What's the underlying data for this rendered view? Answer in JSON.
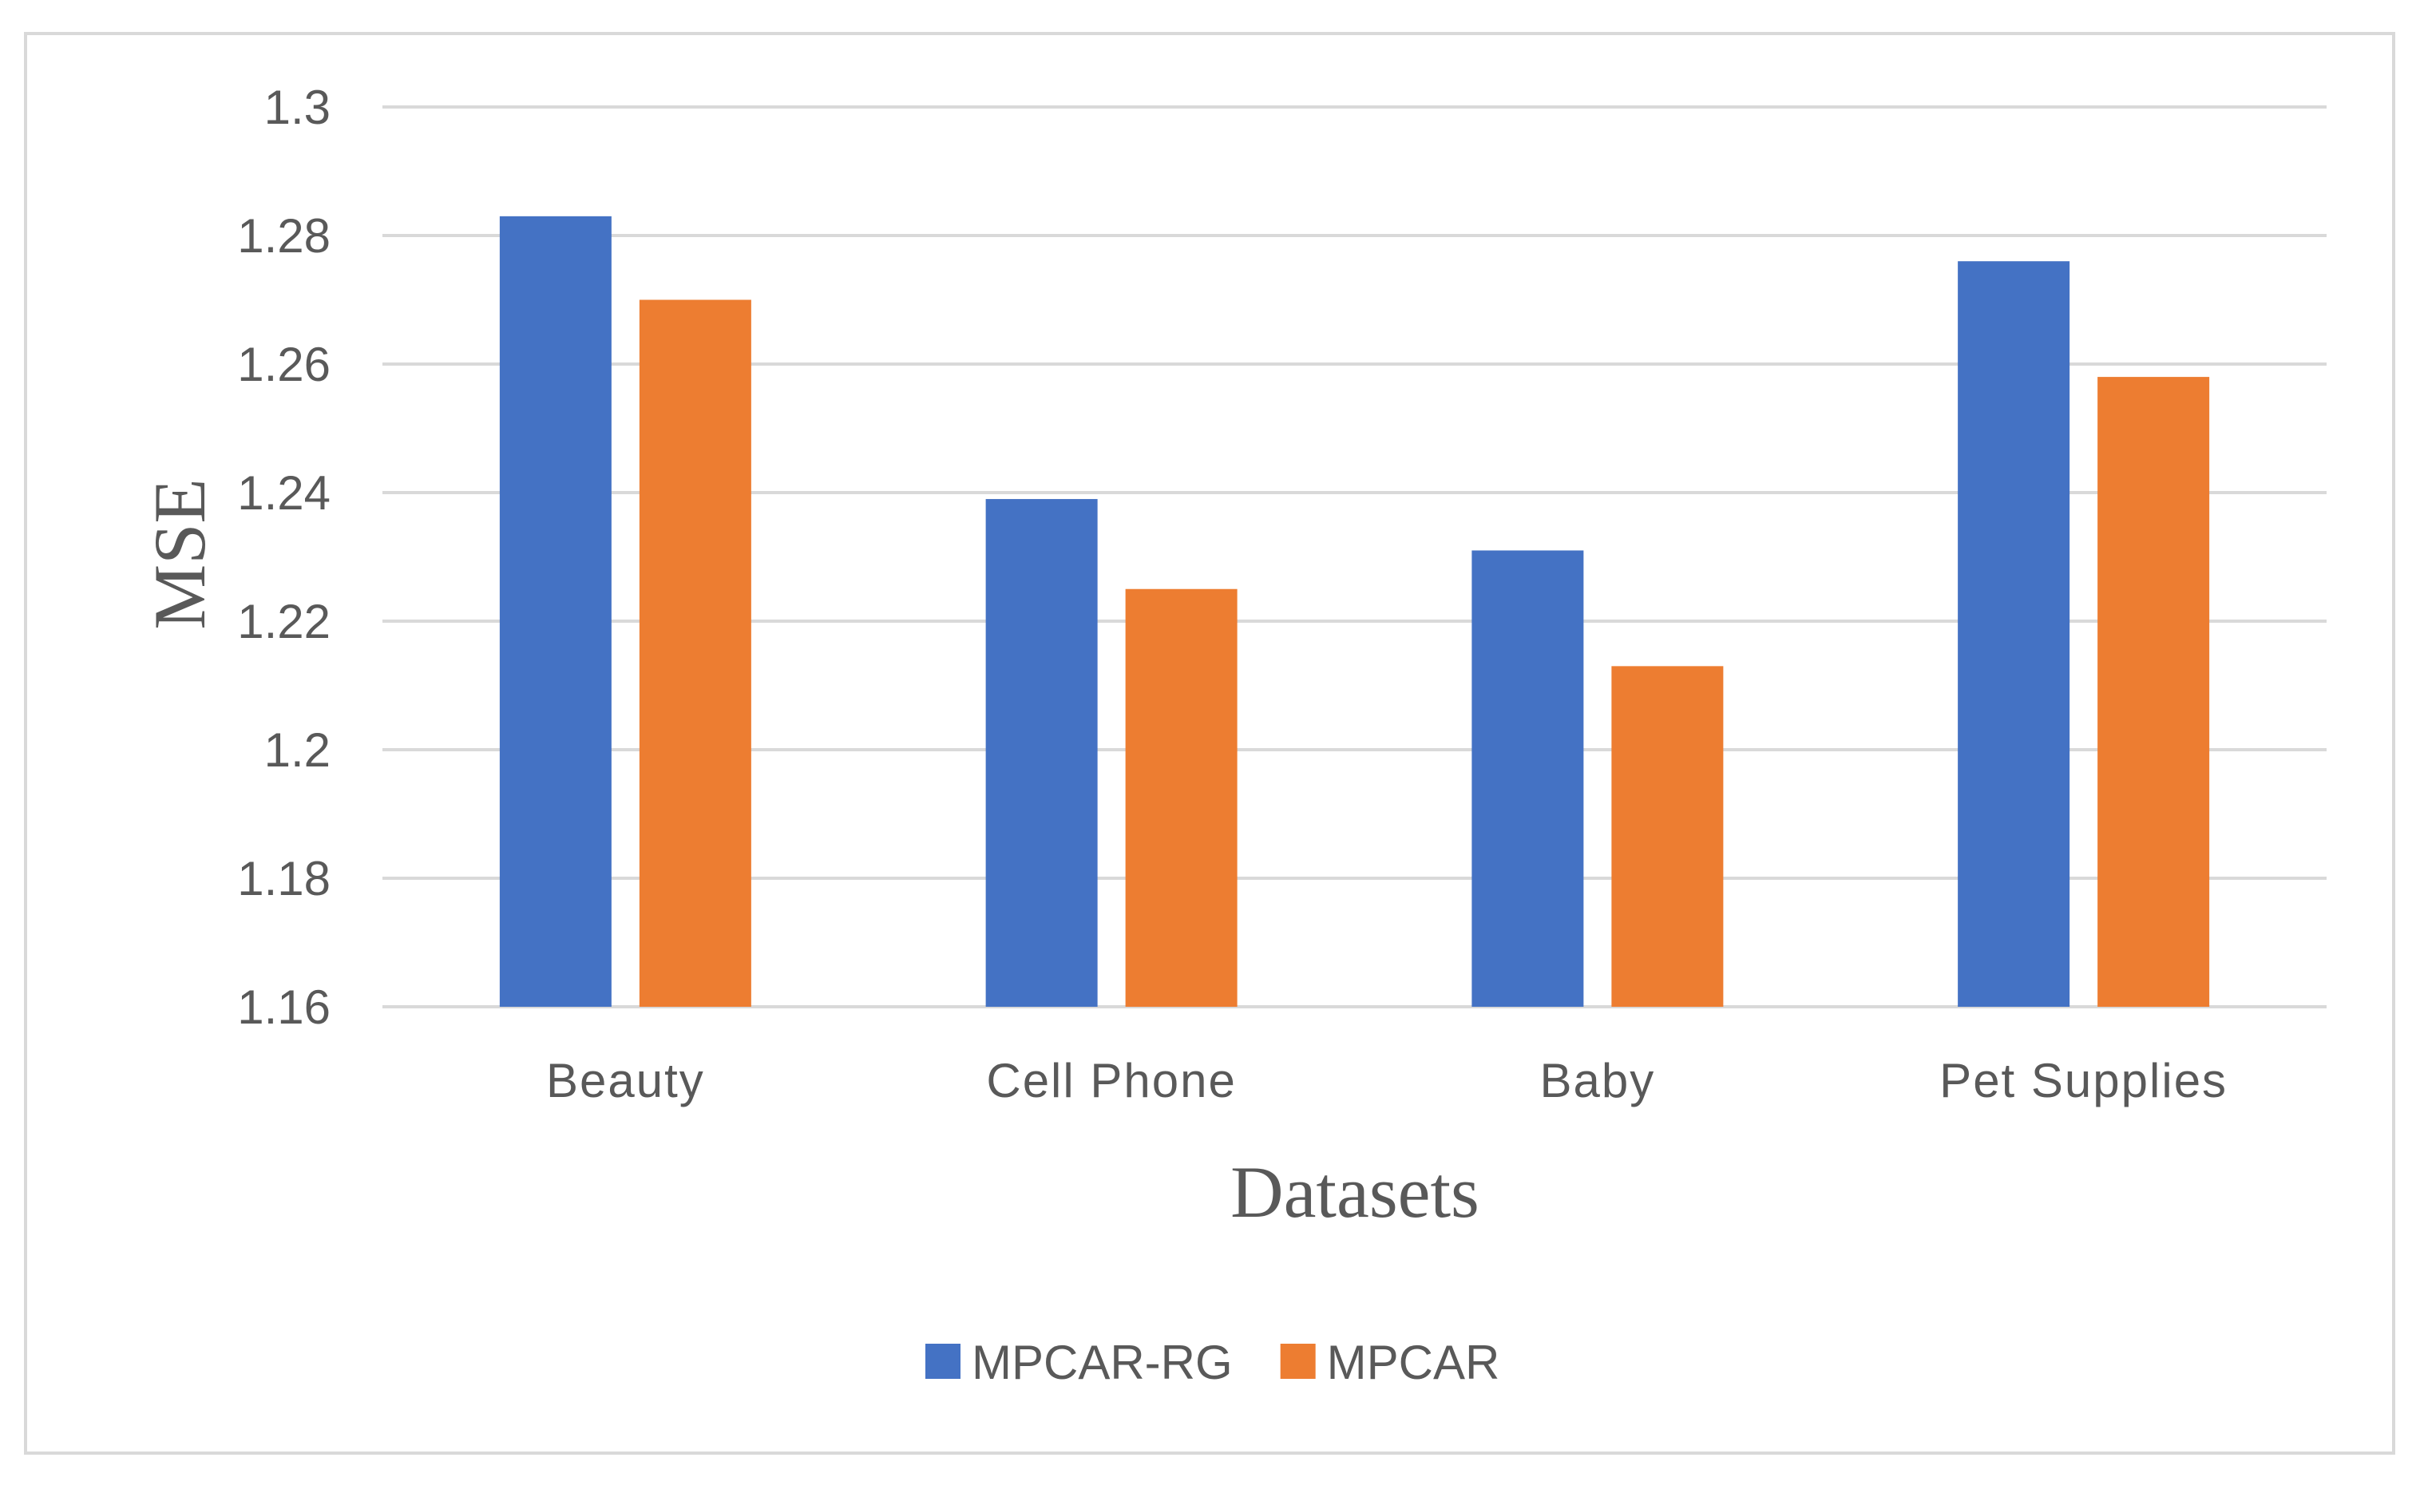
{
  "chart_data": {
    "type": "bar",
    "title": "",
    "xlabel": "Datasets",
    "ylabel": "MSE",
    "ylim": [
      1.16,
      1.3
    ],
    "yticks": [
      1.16,
      1.18,
      1.2,
      1.22,
      1.24,
      1.26,
      1.28,
      1.3
    ],
    "ytick_labels": [
      "1.16",
      "1.18",
      "1.2",
      "1.22",
      "1.24",
      "1.26",
      "1.28",
      "1.3"
    ],
    "grid": true,
    "legend_position": "bottom-center",
    "categories": [
      "Beauty",
      "Cell Phone",
      "Baby",
      "Pet Supplies"
    ],
    "series": [
      {
        "name": "MPCAR-RG",
        "color": "#4472c4",
        "values": [
          1.283,
          1.239,
          1.231,
          1.276
        ]
      },
      {
        "name": "MPCAR",
        "color": "#ed7d31",
        "values": [
          1.27,
          1.225,
          1.213,
          1.258
        ]
      }
    ],
    "gridline_color": "#d9d9d9"
  }
}
